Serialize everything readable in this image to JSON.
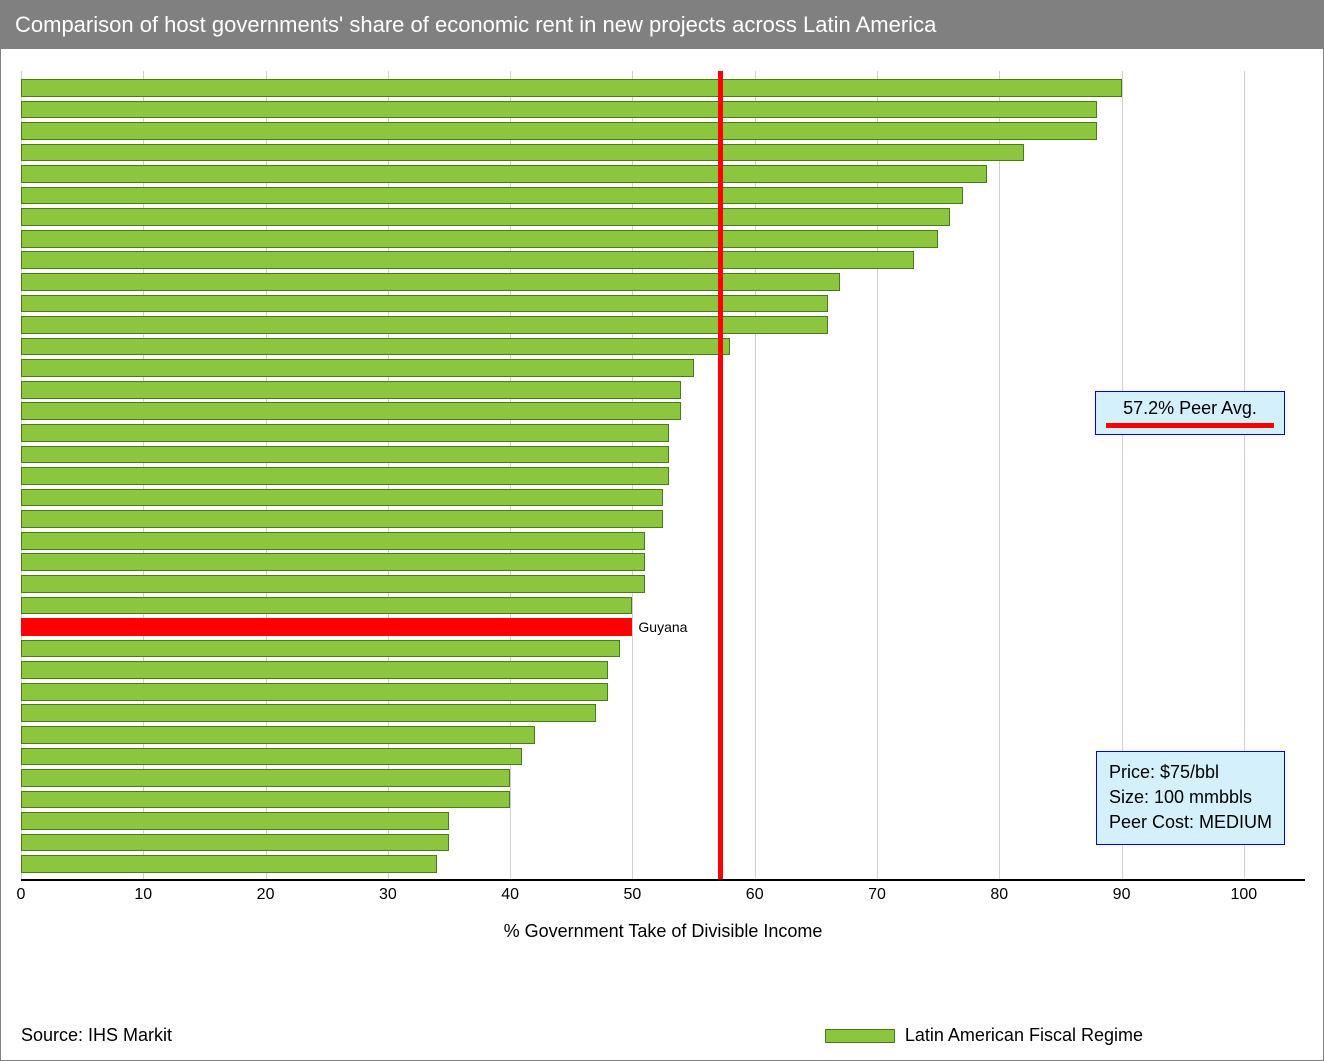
{
  "title": "Comparison of host governments' share of economic rent in new projects across Latin America",
  "source": "Source: IHS Markit",
  "x_axis_label": "% Government Take of Divisible Income",
  "chart": {
    "type": "bar-horizontal",
    "xlim": [
      0,
      105
    ],
    "xtick_step": 10,
    "xticks": [
      0,
      10,
      20,
      30,
      40,
      50,
      60,
      70,
      80,
      90,
      100
    ],
    "bar_color": "#8cc63f",
    "bar_border_color": "#4a7a1a",
    "highlight_color": "#ff0000",
    "grid_color": "#d0d0d0",
    "background_color": "#ffffff",
    "axis_color": "#000000",
    "reference_line": {
      "value": 57.2,
      "color": "#ff0000",
      "width": 5
    },
    "bars": [
      {
        "value": 90,
        "label": "",
        "highlight": false
      },
      {
        "value": 88,
        "label": "",
        "highlight": false
      },
      {
        "value": 88,
        "label": "",
        "highlight": false
      },
      {
        "value": 82,
        "label": "",
        "highlight": false
      },
      {
        "value": 79,
        "label": "",
        "highlight": false
      },
      {
        "value": 77,
        "label": "",
        "highlight": false
      },
      {
        "value": 76,
        "label": "",
        "highlight": false
      },
      {
        "value": 75,
        "label": "",
        "highlight": false
      },
      {
        "value": 73,
        "label": "",
        "highlight": false
      },
      {
        "value": 67,
        "label": "",
        "highlight": false
      },
      {
        "value": 66,
        "label": "",
        "highlight": false
      },
      {
        "value": 66,
        "label": "",
        "highlight": false
      },
      {
        "value": 58,
        "label": "",
        "highlight": false
      },
      {
        "value": 55,
        "label": "",
        "highlight": false
      },
      {
        "value": 54,
        "label": "",
        "highlight": false
      },
      {
        "value": 54,
        "label": "",
        "highlight": false
      },
      {
        "value": 53,
        "label": "",
        "highlight": false
      },
      {
        "value": 53,
        "label": "",
        "highlight": false
      },
      {
        "value": 53,
        "label": "",
        "highlight": false
      },
      {
        "value": 52.5,
        "label": "",
        "highlight": false
      },
      {
        "value": 52.5,
        "label": "",
        "highlight": false
      },
      {
        "value": 51,
        "label": "",
        "highlight": false
      },
      {
        "value": 51,
        "label": "",
        "highlight": false
      },
      {
        "value": 51,
        "label": "",
        "highlight": false
      },
      {
        "value": 50,
        "label": "",
        "highlight": false
      },
      {
        "value": 50,
        "label": "Guyana",
        "highlight": true
      },
      {
        "value": 49,
        "label": "",
        "highlight": false
      },
      {
        "value": 48,
        "label": "",
        "highlight": false
      },
      {
        "value": 48,
        "label": "",
        "highlight": false
      },
      {
        "value": 47,
        "label": "",
        "highlight": false
      },
      {
        "value": 42,
        "label": "",
        "highlight": false
      },
      {
        "value": 41,
        "label": "",
        "highlight": false
      },
      {
        "value": 40,
        "label": "",
        "highlight": false
      },
      {
        "value": 40,
        "label": "",
        "highlight": false
      },
      {
        "value": 35,
        "label": "",
        "highlight": false
      },
      {
        "value": 35,
        "label": "",
        "highlight": false
      },
      {
        "value": 34,
        "label": "",
        "highlight": false
      }
    ]
  },
  "peer_avg_box": {
    "text": "57.2% Peer Avg.",
    "bg": "#d4f0fa",
    "border": "#0000ff",
    "line_color": "#ff0000"
  },
  "assumptions_box": {
    "lines": [
      "Price: $75/bbl",
      "Size: 100 mmbbls",
      "Peer Cost: MEDIUM"
    ],
    "bg": "#d4f0fa",
    "border": "#0000ff"
  },
  "legend": {
    "swatch_color": "#8cc63f",
    "label": "Latin American Fiscal Regime"
  }
}
